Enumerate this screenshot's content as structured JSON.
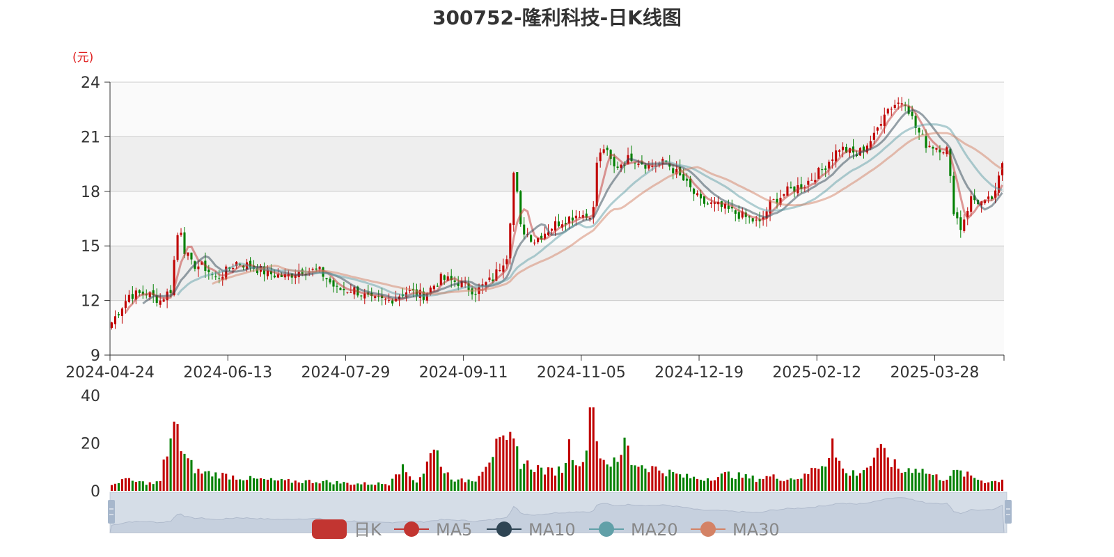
{
  "page": {
    "title": "300752-隆利科技-日K线图",
    "unit_label": "(元)"
  },
  "legend": [
    {
      "label": "日K",
      "color": "#c23531",
      "kind": "bar"
    },
    {
      "label": "MA5",
      "color": "#c23531",
      "kind": "line"
    },
    {
      "label": "MA10",
      "color": "#2f4554",
      "kind": "line"
    },
    {
      "label": "MA20",
      "color": "#61a0a8",
      "kind": "line"
    },
    {
      "label": "MA30",
      "color": "#d48265",
      "kind": "line"
    }
  ],
  "colors": {
    "up": "#c00000",
    "down": "#008000",
    "ma5": "#c23531",
    "ma10": "#2f4554",
    "ma20": "#61a0a8",
    "ma30": "#d48265",
    "band_light": "#fafafa",
    "band_dark": "#eeeeee",
    "slider_fill": "#d8dee9"
  },
  "chart_data": {
    "type": "candlestick",
    "title": "300752-隆利科技-日K线图",
    "price_axis": {
      "unit": "(元)",
      "min": 9,
      "max": 24,
      "ticks": [
        9,
        12,
        15,
        18,
        21,
        24
      ]
    },
    "volume_axis": {
      "min": 0,
      "max": 40,
      "ticks": [
        0,
        20,
        40
      ]
    },
    "x_tick_labels": [
      "2024-04-24",
      "2024-06-13",
      "2024-07-29",
      "2024-09-11",
      "2024-11-05",
      "2024-12-19",
      "2025-02-12",
      "2025-03-28"
    ],
    "x_tick_days": [
      0,
      34,
      68,
      102,
      136,
      170,
      204,
      238
    ],
    "day_count": 258,
    "price_anchors": [
      [
        0,
        10.8
      ],
      [
        5,
        12.3
      ],
      [
        10,
        12.4
      ],
      [
        14,
        12.0
      ],
      [
        17,
        12.6
      ],
      [
        18,
        14.2
      ],
      [
        19,
        15.6
      ],
      [
        20,
        15.9
      ],
      [
        21,
        14.8
      ],
      [
        23,
        14.0
      ],
      [
        27,
        13.8
      ],
      [
        30,
        13.2
      ],
      [
        33,
        13.6
      ],
      [
        36,
        14.1
      ],
      [
        40,
        13.9
      ],
      [
        45,
        13.5
      ],
      [
        50,
        13.3
      ],
      [
        55,
        13.7
      ],
      [
        60,
        13.6
      ],
      [
        65,
        12.6
      ],
      [
        70,
        12.6
      ],
      [
        75,
        12.0
      ],
      [
        80,
        12.0
      ],
      [
        85,
        12.5
      ],
      [
        90,
        12.3
      ],
      [
        95,
        13.2
      ],
      [
        100,
        13.0
      ],
      [
        105,
        12.5
      ],
      [
        110,
        13.2
      ],
      [
        114,
        14.5
      ],
      [
        115,
        16.5
      ],
      [
        116,
        19.0
      ],
      [
        117,
        17.8
      ],
      [
        118,
        16.0
      ],
      [
        122,
        15.3
      ],
      [
        128,
        16.2
      ],
      [
        135,
        16.8
      ],
      [
        137,
        16.6
      ],
      [
        139,
        17.0
      ],
      [
        140,
        19.6
      ],
      [
        142,
        20.4
      ],
      [
        145,
        19.3
      ],
      [
        150,
        19.9
      ],
      [
        155,
        19.4
      ],
      [
        160,
        19.6
      ],
      [
        165,
        18.6
      ],
      [
        170,
        17.4
      ],
      [
        175,
        17.2
      ],
      [
        180,
        16.8
      ],
      [
        185,
        16.4
      ],
      [
        187,
        16.2
      ],
      [
        190,
        17.3
      ],
      [
        195,
        18.0
      ],
      [
        200,
        18.4
      ],
      [
        205,
        19.2
      ],
      [
        210,
        20.4
      ],
      [
        215,
        20.0
      ],
      [
        220,
        21.0
      ],
      [
        223,
        22.4
      ],
      [
        226,
        22.8
      ],
      [
        229,
        23.0
      ],
      [
        232,
        21.5
      ],
      [
        235,
        20.6
      ],
      [
        239,
        20.4
      ],
      [
        241,
        20.3
      ],
      [
        243,
        17.0
      ],
      [
        245,
        16.0
      ],
      [
        248,
        17.6
      ],
      [
        252,
        17.3
      ],
      [
        255,
        17.8
      ],
      [
        257,
        19.6
      ]
    ],
    "volume_anchors": [
      [
        0,
        2
      ],
      [
        3,
        5
      ],
      [
        6,
        4
      ],
      [
        12,
        3
      ],
      [
        14,
        4
      ],
      [
        15,
        11
      ],
      [
        17,
        22
      ],
      [
        18,
        29
      ],
      [
        20,
        17
      ],
      [
        22,
        12
      ],
      [
        25,
        8
      ],
      [
        30,
        7
      ],
      [
        40,
        5
      ],
      [
        50,
        4
      ],
      [
        60,
        4
      ],
      [
        70,
        3
      ],
      [
        80,
        3
      ],
      [
        82,
        9
      ],
      [
        84,
        9
      ],
      [
        88,
        4
      ],
      [
        90,
        8
      ],
      [
        92,
        15
      ],
      [
        94,
        17
      ],
      [
        96,
        8
      ],
      [
        100,
        4
      ],
      [
        105,
        5
      ],
      [
        108,
        12
      ],
      [
        111,
        18
      ],
      [
        114,
        19
      ],
      [
        116,
        22
      ],
      [
        118,
        12
      ],
      [
        122,
        10
      ],
      [
        126,
        8
      ],
      [
        130,
        9
      ],
      [
        132,
        19
      ],
      [
        134,
        14
      ],
      [
        136,
        10
      ],
      [
        138,
        35
      ],
      [
        139,
        35
      ],
      [
        140,
        20
      ],
      [
        142,
        13
      ],
      [
        146,
        11
      ],
      [
        148,
        20
      ],
      [
        150,
        12
      ],
      [
        155,
        10
      ],
      [
        160,
        8
      ],
      [
        165,
        6
      ],
      [
        170,
        5
      ],
      [
        175,
        6
      ],
      [
        178,
        7
      ],
      [
        182,
        6
      ],
      [
        186,
        5
      ],
      [
        190,
        6
      ],
      [
        195,
        5
      ],
      [
        200,
        6
      ],
      [
        203,
        10
      ],
      [
        206,
        12
      ],
      [
        208,
        22
      ],
      [
        209,
        14
      ],
      [
        212,
        7
      ],
      [
        216,
        8
      ],
      [
        220,
        12
      ],
      [
        222,
        17
      ],
      [
        223,
        18
      ],
      [
        225,
        12
      ],
      [
        228,
        8
      ],
      [
        232,
        10
      ],
      [
        236,
        7
      ],
      [
        240,
        5
      ],
      [
        244,
        8
      ],
      [
        248,
        6
      ],
      [
        252,
        4
      ],
      [
        255,
        4
      ],
      [
        257,
        5
      ]
    ],
    "volume_spikes": [
      [
        17,
        22
      ],
      [
        18,
        29
      ],
      [
        19,
        28
      ],
      [
        94,
        17
      ],
      [
        116,
        22
      ],
      [
        138,
        35
      ],
      [
        139,
        35
      ],
      [
        149,
        19
      ],
      [
        208,
        22
      ],
      [
        223,
        18
      ]
    ],
    "series": [
      {
        "name": "日K",
        "type": "candlestick"
      },
      {
        "name": "MA5",
        "type": "line",
        "window": 5
      },
      {
        "name": "MA10",
        "type": "line",
        "window": 10
      },
      {
        "name": "MA20",
        "type": "line",
        "window": 20
      },
      {
        "name": "MA30",
        "type": "line",
        "window": 30
      }
    ],
    "legend_position": "bottom",
    "grid": true
  }
}
